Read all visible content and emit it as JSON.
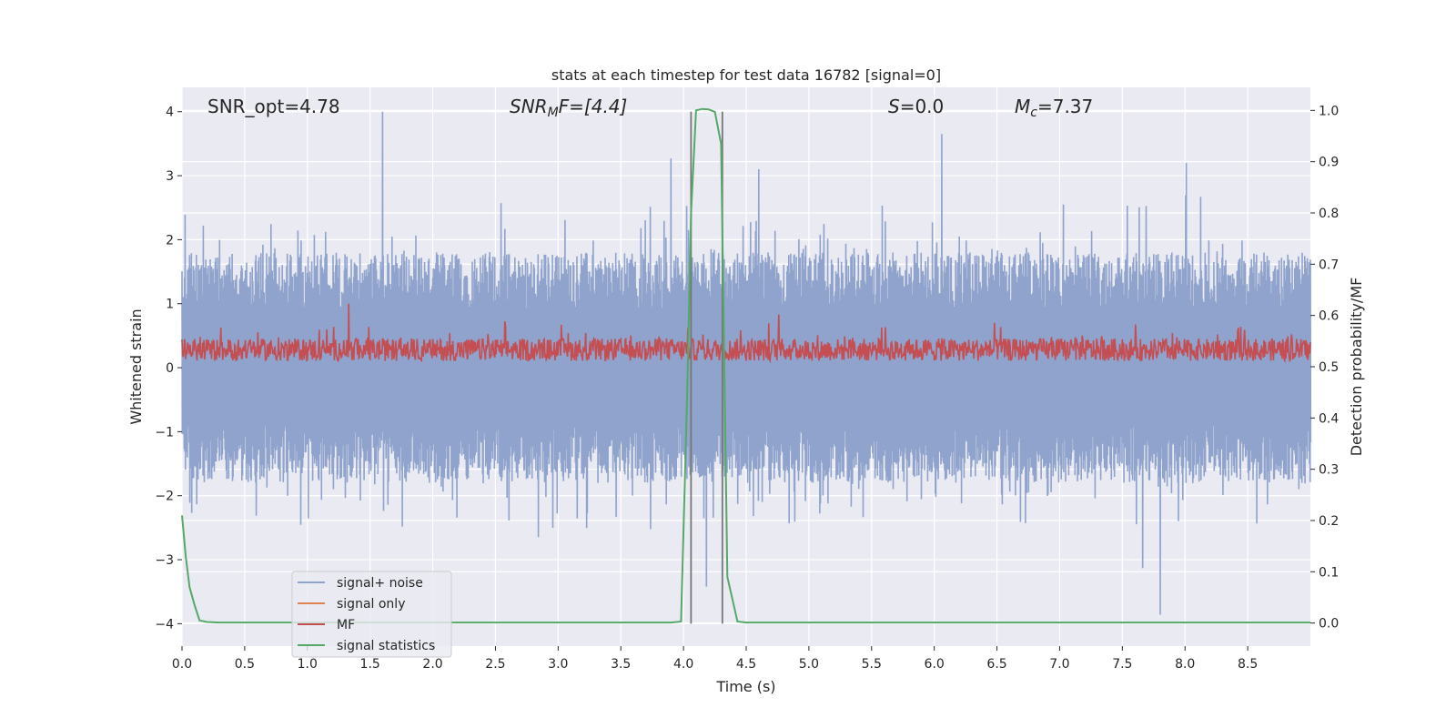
{
  "chart_data": {
    "type": "line",
    "title": "stats at each timestep for test data 16782 [signal=0]",
    "xlabel": "Time (s)",
    "ylabel_left": "Whitened strain",
    "ylabel_right": "Detection probability/MF",
    "xlim": [
      0,
      9.0
    ],
    "ylim_left": [
      -4.35,
      4.38
    ],
    "ylim_right": [
      -0.045,
      1.045
    ],
    "x_ticks": [
      0.0,
      0.5,
      1.0,
      1.5,
      2.0,
      2.5,
      3.0,
      3.5,
      4.0,
      4.5,
      5.0,
      5.5,
      6.0,
      6.5,
      7.0,
      7.5,
      8.0,
      8.5
    ],
    "x_tick_labels": [
      "0.0",
      "0.5",
      "1.0",
      "1.5",
      "2.0",
      "2.5",
      "3.0",
      "3.5",
      "4.0",
      "4.5",
      "5.0",
      "5.5",
      "6.0",
      "6.5",
      "7.0",
      "7.5",
      "8.0",
      "8.5"
    ],
    "y_left_ticks": [
      4,
      3,
      2,
      1,
      0,
      -1,
      -2,
      -3,
      -4
    ],
    "y_left_tick_labels": [
      "4",
      "3",
      "2",
      "1",
      "0",
      "−1",
      "−2",
      "−3",
      "−4"
    ],
    "y_right_ticks": [
      1.0,
      0.9,
      0.8,
      0.7,
      0.6,
      0.5,
      0.4,
      0.3,
      0.2,
      0.1,
      0.0
    ],
    "y_right_tick_labels": [
      "1.0",
      "0.9",
      "0.8",
      "0.7",
      "0.6",
      "0.5",
      "0.4",
      "0.3",
      "0.2",
      "0.1",
      "0.0"
    ],
    "annotations": {
      "snr_opt": "SNR_opt=4.78",
      "snr_mf_main": "SNR",
      "snr_mf_sub": "M",
      "snr_mf_rest": "F=[4.4]",
      "s_main": "S",
      "s_rest": "=0.0",
      "mc_main": "M",
      "mc_sub": "c",
      "mc_rest": "=7.37"
    },
    "vlines": [
      4.06,
      4.31
    ],
    "vline_range": [
      -4.0,
      4.0
    ],
    "legend": {
      "placement": "lower-left",
      "entries": [
        "signal+ noise",
        "signal only",
        "MF",
        "signal statistics"
      ]
    },
    "noise_envelope": {
      "samples": 1800,
      "upper_typical": [
        1.5,
        2.5
      ],
      "lower_typical": [
        -1.5,
        -2.6
      ],
      "spikes": [
        {
          "x": 1.6,
          "y": 4.0
        },
        {
          "x": 3.9,
          "y": 3.27
        },
        {
          "x": 6.06,
          "y": 3.65
        },
        {
          "x": 8.01,
          "y": 3.2
        },
        {
          "x": 4.6,
          "y": 3.1
        },
        {
          "x": 7.8,
          "y": -3.86
        },
        {
          "x": 7.66,
          "y": -3.13
        },
        {
          "x": 4.18,
          "y": -3.42
        }
      ]
    },
    "mf": {
      "samples": 1800,
      "base": 0.28,
      "amp_range": [
        0.0,
        0.82
      ],
      "peaks": [
        {
          "x": 1.33,
          "y": 1.0
        },
        {
          "x": 4.76,
          "y": 0.83
        }
      ]
    },
    "series": [
      {
        "name": "signal statistics",
        "axis": "right",
        "x": [
          0.0,
          0.03,
          0.06,
          0.1,
          0.14,
          0.2,
          0.3,
          0.5,
          1.0,
          2.0,
          3.0,
          3.9,
          3.98,
          4.03,
          4.06,
          4.1,
          4.15,
          4.2,
          4.25,
          4.3,
          4.35,
          4.43,
          4.5,
          6.0,
          7.5,
          9.0
        ],
        "values": [
          0.21,
          0.13,
          0.07,
          0.035,
          0.005,
          0.002,
          0.001,
          0.001,
          0.001,
          0.001,
          0.001,
          0.001,
          0.003,
          0.45,
          0.8,
          1.0,
          1.003,
          1.002,
          0.997,
          0.935,
          0.09,
          0.003,
          0.001,
          0.001,
          0.001,
          0.001
        ]
      },
      {
        "name": "signal only",
        "axis": "left",
        "x": [
          0.0,
          9.0
        ],
        "values": [
          0,
          0
        ]
      }
    ],
    "colors": {
      "noise": "#8fa3cc",
      "mf": "#c44e52",
      "stats": "#55a868",
      "signal_only": "#dd8452",
      "vline": "#777777",
      "axes_bg": "#eaeaf2",
      "grid": "#ffffff"
    }
  }
}
